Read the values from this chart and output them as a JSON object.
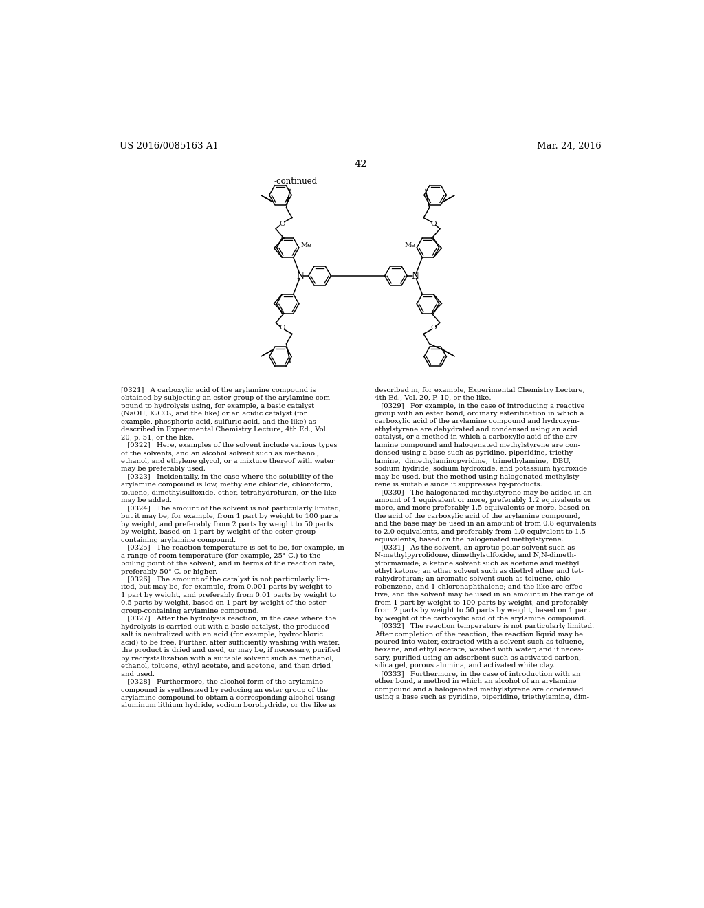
{
  "header_left": "US 2016/0085163 A1",
  "header_right": "Mar. 24, 2016",
  "page_number": "42",
  "continued_label": "-continued",
  "background_color": "#ffffff",
  "text_color": "#000000",
  "left_column_text": "[0321]   A carboxylic acid of the arylamine compound is\nobtained by subjecting an ester group of the arylamine com-\npound to hydrolysis using, for example, a basic catalyst\n(NaOH, K₂CO₃, and the like) or an acidic catalyst (for\nexample, phosphoric acid, sulfuric acid, and the like) as\ndescribed in Experimental Chemistry Lecture, 4th Ed., Vol.\n20, p. 51, or the like.\n   [0322]   Here, examples of the solvent include various types\nof the solvents, and an alcohol solvent such as methanol,\nethanol, and ethylene glycol, or a mixture thereof with water\nmay be preferably used.\n   [0323]   Incidentally, in the case where the solubility of the\narylamine compound is low, methylene chloride, chloroform,\ntoluene, dimethylsulfoxide, ether, tetrahydrofuran, or the like\nmay be added.\n   [0324]   The amount of the solvent is not particularly limited,\nbut it may be, for example, from 1 part by weight to 100 parts\nby weight, and preferably from 2 parts by weight to 50 parts\nby weight, based on 1 part by weight of the ester group-\ncontaining arylamine compound.\n   [0325]   The reaction temperature is set to be, for example, in\na range of room temperature (for example, 25° C.) to the\nboiling point of the solvent, and in terms of the reaction rate,\npreferably 50° C. or higher.\n   [0326]   The amount of the catalyst is not particularly lim-\nited, but may be, for example, from 0.001 parts by weight to\n1 part by weight, and preferably from 0.01 parts by weight to\n0.5 parts by weight, based on 1 part by weight of the ester\ngroup-containing arylamine compound.\n   [0327]   After the hydrolysis reaction, in the case where the\nhydrolysis is carried out with a basic catalyst, the produced\nsalt is neutralized with an acid (for example, hydrochloric\nacid) to be free. Further, after sufficiently washing with water,\nthe product is dried and used, or may be, if necessary, purified\nby recrystallization with a suitable solvent such as methanol,\nethanol, toluene, ethyl acetate, and acetone, and then dried\nand used.\n   [0328]   Furthermore, the alcohol form of the arylamine\ncompound is synthesized by reducing an ester group of the\narylamine compound to obtain a corresponding alcohol using\naluminum lithium hydride, sodium borohydride, or the like as",
  "right_column_text": "described in, for example, Experimental Chemistry Lecture,\n4th Ed., Vol. 20, P. 10, or the like.\n   [0329]   For example, in the case of introducing a reactive\ngroup with an ester bond, ordinary esterification in which a\ncarboxylic acid of the arylamine compound and hydroxym-\nethylstyrene are dehydrated and condensed using an acid\ncatalyst, or a method in which a carboxylic acid of the ary-\nlamine compound and halogenated methylstyrene are con-\ndensed using a base such as pyridine, piperidine, triethy-\nlamine,  dimethylaminopyridine,  trimethylamine,  DBU,\nsodium hydride, sodium hydroxide, and potassium hydroxide\nmay be used, but the method using halogenated methylsty-\nrene is suitable since it suppresses by-products.\n   [0330]   The halogenated methylstyrene may be added in an\namount of 1 equivalent or more, preferably 1.2 equivalents or\nmore, and more preferably 1.5 equivalents or more, based on\nthe acid of the carboxylic acid of the arylamine compound,\nand the base may be used in an amount of from 0.8 equivalents\nto 2.0 equivalents, and preferably from 1.0 equivalent to 1.5\nequivalents, based on the halogenated methylstyrene.\n   [0331]   As the solvent, an aprotic polar solvent such as\nN-methylpyrrolidone, dimethylsulfoxide, and N,N-dimeth-\nylformamide; a ketone solvent such as acetone and methyl\nethyl ketone; an ether solvent such as diethyl ether and tet-\nrahydrofuran; an aromatic solvent such as toluene, chlo-\nrobenzene, and 1-chloronaphthalene; and the like are effec-\ntive, and the solvent may be used in an amount in the range of\nfrom 1 part by weight to 100 parts by weight, and preferably\nfrom 2 parts by weight to 50 parts by weight, based on 1 part\nby weight of the carboxylic acid of the arylamine compound.\n   [0332]   The reaction temperature is not particularly limited.\nAfter completion of the reaction, the reaction liquid may be\npoured into water, extracted with a solvent such as toluene,\nhexane, and ethyl acetate, washed with water, and if neces-\nsary, purified using an adsorbent such as activated carbon,\nsilica gel, porous alumina, and activated white clay.\n   [0333]   Furthermore, in the case of introduction with an\nether bond, a method in which an alcohol of an arylamine\ncompound and a halogenated methylstyrene are condensed\nusing a base such as pyridine, piperidine, triethylamine, dim-"
}
